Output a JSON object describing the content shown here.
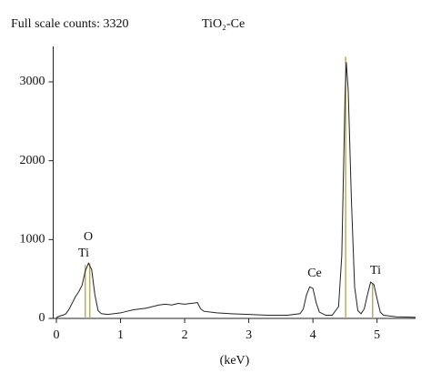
{
  "chart_data": {
    "type": "line",
    "title": "Full scale counts: 3320",
    "subtitle": "TiO₂-Ce",
    "x_label": "(keV)",
    "x": [
      0.0,
      0.05,
      0.1,
      0.15,
      0.2,
      0.25,
      0.3,
      0.35,
      0.4,
      0.45,
      0.5,
      0.55,
      0.6,
      0.65,
      0.7,
      0.8,
      0.9,
      1.0,
      1.1,
      1.2,
      1.3,
      1.4,
      1.5,
      1.6,
      1.7,
      1.8,
      1.9,
      2.0,
      2.1,
      2.2,
      2.25,
      2.3,
      2.5,
      2.7,
      3.0,
      3.3,
      3.6,
      3.8,
      3.85,
      3.9,
      3.95,
      4.0,
      4.05,
      4.1,
      4.2,
      4.3,
      4.4,
      4.45,
      4.5,
      4.52,
      4.55,
      4.6,
      4.65,
      4.7,
      4.75,
      4.8,
      4.85,
      4.9,
      4.95,
      5.0,
      5.05,
      5.1,
      5.3,
      5.6
    ],
    "series": [
      {
        "color": "#222222",
        "values": [
          10,
          30,
          40,
          60,
          120,
          200,
          280,
          340,
          420,
          600,
          700,
          620,
          300,
          100,
          60,
          50,
          60,
          70,
          90,
          110,
          120,
          130,
          150,
          170,
          180,
          170,
          190,
          180,
          190,
          200,
          120,
          90,
          70,
          60,
          50,
          40,
          40,
          60,
          120,
          300,
          400,
          380,
          200,
          80,
          40,
          40,
          150,
          800,
          2800,
          3250,
          2900,
          1500,
          400,
          100,
          60,
          120,
          300,
          460,
          430,
          250,
          80,
          40,
          20,
          15
        ]
      }
    ],
    "element_lines": {
      "color": "#b5b060",
      "x": [
        0.45,
        0.52,
        4.51,
        4.93
      ],
      "values": [
        680,
        700,
        3320,
        450
      ]
    },
    "annotations": [
      "O",
      "Ti",
      "Ce",
      "Ti"
    ],
    "xlim": [
      -0.05,
      5.6
    ],
    "xticks": [
      0,
      1,
      2,
      3,
      4,
      5
    ],
    "ylim": [
      0,
      3450
    ],
    "yticks": [
      0,
      1000,
      2000,
      3000
    ]
  }
}
